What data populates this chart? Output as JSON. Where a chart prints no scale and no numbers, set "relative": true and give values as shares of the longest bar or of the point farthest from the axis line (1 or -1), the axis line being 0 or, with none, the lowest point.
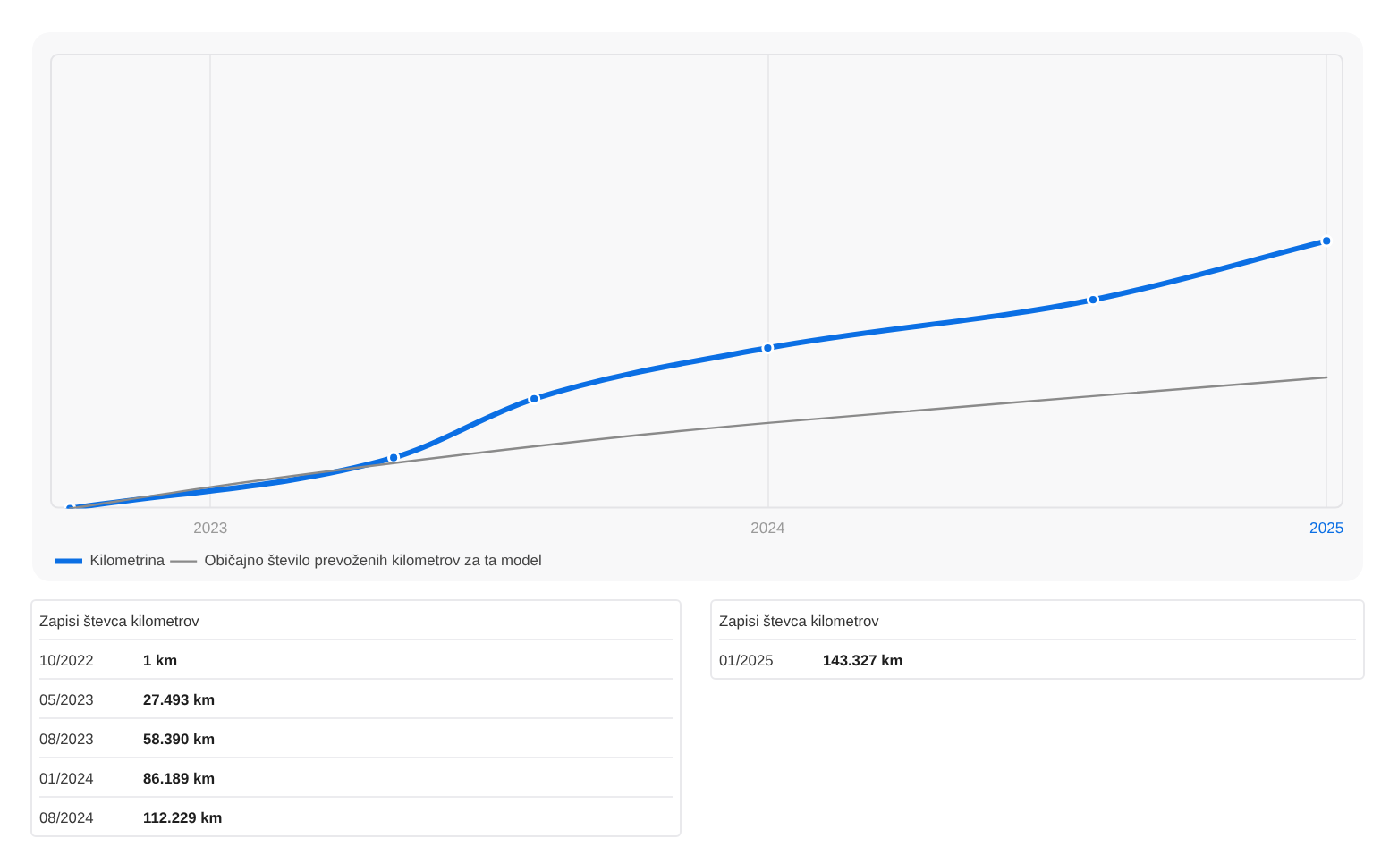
{
  "chart_data": [
    {
      "type": "line",
      "relative": true,
      "x": [
        "2022-10",
        "2023-05",
        "2023-08",
        "2024-01",
        "2024-08",
        "2025-01"
      ],
      "xlim": [
        "2022-09-18",
        "2025-01-12"
      ],
      "xticks": [
        "2023",
        "2024",
        "2025"
      ],
      "grid": "x",
      "legend": "bottom left",
      "series": [
        {
          "name": "Kilometrina",
          "color": "#0b6fe4",
          "marker": "circle",
          "values": [
            0,
            0.19,
            0.41,
            0.6,
            0.78,
            1
          ]
        },
        {
          "name": "Običajno število prevoženih kilometrov za ta model",
          "color": "#8a8a8a",
          "marker": "none",
          "x": [
            "2022-10",
            "2023-01",
            "2023-05",
            "2023-10",
            "2024-01",
            "2024-08",
            "2025-01"
          ],
          "values": [
            0,
            0.08,
            0.17,
            0.27,
            0.32,
            0.42,
            0.49
          ]
        }
      ]
    },
    {
      "type": "other",
      "title": "Zapisi števca kilometrov",
      "annotations": [
        "10/2022",
        "1 km",
        "05/2023",
        "27.493 km",
        "08/2023",
        "58.390 km",
        "01/2024",
        "86.189 km",
        "08/2024",
        "112.229 km"
      ]
    },
    {
      "type": "other",
      "title": "Zapisi števca kilometrov",
      "annotations": [
        "01/2025",
        "143.327 km"
      ]
    }
  ]
}
